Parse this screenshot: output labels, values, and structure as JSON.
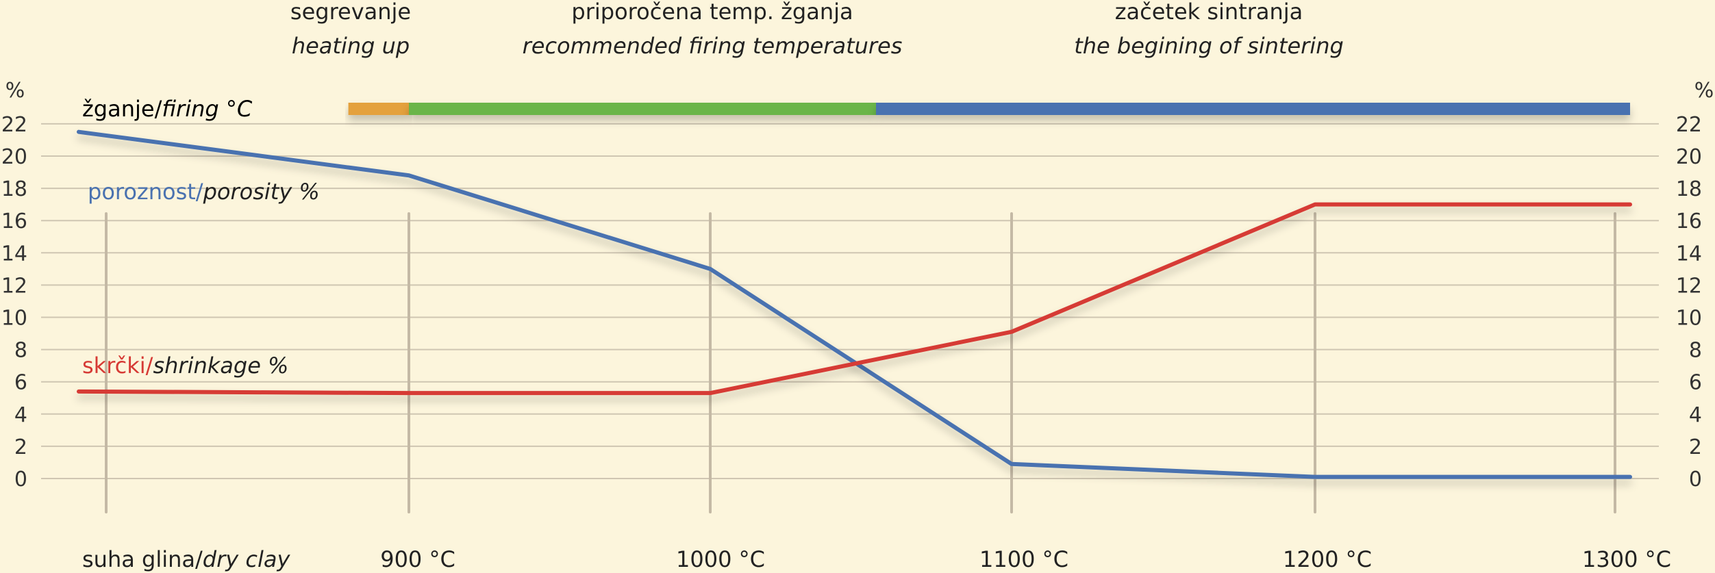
{
  "chart_data": {
    "type": "line",
    "categories": [
      "suha glina/dry clay",
      "900 °C",
      "1000 °C",
      "1100 °C",
      "1200 °C",
      "1300 °C"
    ],
    "category_labels": [
      {
        "main": "suha glina/",
        "italic": "dry clay"
      },
      {
        "main": "900 °C",
        "italic": ""
      },
      {
        "main": "1000 °C",
        "italic": ""
      },
      {
        "main": "1100 °C",
        "italic": ""
      },
      {
        "main": "1200 °C",
        "italic": ""
      },
      {
        "main": "1300 °C",
        "italic": ""
      }
    ],
    "series": [
      {
        "name": "poroznost/porosity %",
        "label_main": "poroznost/",
        "label_italic": "porosity %",
        "color": "#4a72b0",
        "points": [
          {
            "x": "start",
            "y": 21.5
          },
          {
            "x": "900 °C",
            "y": 18.8
          },
          {
            "x": "1000 °C",
            "y": 13.0
          },
          {
            "x": "1100 °C",
            "y": 0.9
          },
          {
            "x": "1200 °C",
            "y": 0.1
          },
          {
            "x": "1300 °C",
            "y": 0.1
          }
        ]
      },
      {
        "name": "skrčki/shrinkage %",
        "label_main": "skrčki/",
        "label_italic": "shrinkage %",
        "color": "#d63a35",
        "points": [
          {
            "x": "start",
            "y": 5.4
          },
          {
            "x": "900 °C",
            "y": 5.3
          },
          {
            "x": "1000 °C",
            "y": 5.3
          },
          {
            "x": "1100 °C",
            "y": 9.1
          },
          {
            "x": "1200 °C",
            "y": 17.0
          },
          {
            "x": "1300 °C",
            "y": 17.0
          }
        ]
      }
    ],
    "yticks": [
      0,
      2,
      4,
      6,
      8,
      10,
      12,
      14,
      16,
      18,
      20,
      22
    ],
    "ylim": [
      0,
      22
    ],
    "y_unit": "%",
    "grid": true,
    "firing": {
      "label_main": "žganje/",
      "label_italic": "firing °C",
      "segments": [
        {
          "from": 0.8,
          "to": 1.0,
          "color": "#e4a13d"
        },
        {
          "from": 1.0,
          "to": 2.55,
          "color": "#6bb54a"
        },
        {
          "from": 2.55,
          "to": 5.0,
          "color": "#4a72b0"
        }
      ]
    },
    "phases": [
      {
        "top": "segrevanje",
        "bottom": "heating up"
      },
      {
        "top": "priporočena temp. žganja",
        "bottom": "recommended firing temperatures"
      },
      {
        "top": "začetek sintranja",
        "bottom": "the begining of sintering"
      }
    ]
  }
}
